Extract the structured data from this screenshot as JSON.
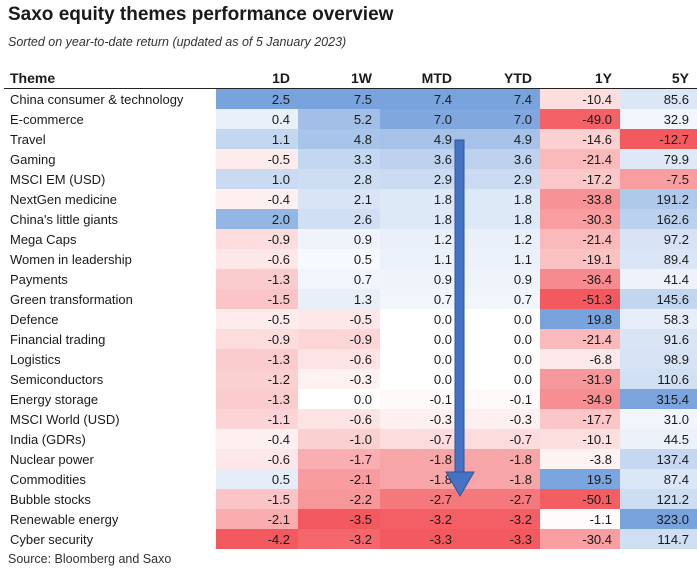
{
  "title": "Saxo equity themes performance overview",
  "subtitle": "Sorted on year-to-date return (updated as of 5 January 2023)",
  "source": "Source: Bloomberg and Saxo",
  "colors": {
    "positive": "#5b8fd6",
    "negative": "#f0363c",
    "neutral": "#ffffff",
    "arrow": "#4472c4"
  },
  "chart_data": {
    "type": "table",
    "columns": [
      "Theme",
      "1D",
      "1W",
      "MTD",
      "YTD",
      "1Y",
      "5Y"
    ],
    "rows": [
      [
        "China consumer & technology",
        2.5,
        7.5,
        7.4,
        7.4,
        -10.4,
        85.6
      ],
      [
        "E-commerce",
        0.4,
        5.2,
        7.0,
        7.0,
        -49.0,
        32.9
      ],
      [
        "Travel",
        1.1,
        4.8,
        4.9,
        4.9,
        -14.6,
        -12.7
      ],
      [
        "Gaming",
        -0.5,
        3.3,
        3.6,
        3.6,
        -21.4,
        79.9
      ],
      [
        "MSCI EM (USD)",
        1.0,
        2.8,
        2.9,
        2.9,
        -17.2,
        -7.5
      ],
      [
        "NextGen medicine",
        -0.4,
        2.1,
        1.8,
        1.8,
        -33.8,
        191.2
      ],
      [
        "China's little giants",
        2.0,
        2.6,
        1.8,
        1.8,
        -30.3,
        162.6
      ],
      [
        "Mega Caps",
        -0.9,
        0.9,
        1.2,
        1.2,
        -21.4,
        97.2
      ],
      [
        "Women in leadership",
        -0.6,
        0.5,
        1.1,
        1.1,
        -19.1,
        89.4
      ],
      [
        "Payments",
        -1.3,
        0.7,
        0.9,
        0.9,
        -36.4,
        41.4
      ],
      [
        "Green transformation",
        -1.5,
        1.3,
        0.7,
        0.7,
        -51.3,
        145.6
      ],
      [
        "Defence",
        -0.5,
        -0.5,
        0.0,
        0.0,
        19.8,
        58.3
      ],
      [
        "Financial trading",
        -0.9,
        -0.9,
        0.0,
        0.0,
        -21.4,
        91.6
      ],
      [
        "Logistics",
        -1.3,
        -0.6,
        0.0,
        0.0,
        -6.8,
        98.9
      ],
      [
        "Semiconductors",
        -1.2,
        -0.3,
        0.0,
        0.0,
        -31.9,
        110.6
      ],
      [
        "Energy storage",
        -1.3,
        0.0,
        -0.1,
        -0.1,
        -34.9,
        315.4
      ],
      [
        "MSCI World (USD)",
        -1.1,
        -0.6,
        -0.3,
        -0.3,
        -17.7,
        31.0
      ],
      [
        "India (GDRs)",
        -0.4,
        -1.0,
        -0.7,
        -0.7,
        -10.1,
        44.5
      ],
      [
        "Nuclear power",
        -0.6,
        -1.7,
        -1.8,
        -1.8,
        -3.8,
        137.4
      ],
      [
        "Commodities",
        0.5,
        -2.1,
        -1.8,
        -1.8,
        19.5,
        87.4
      ],
      [
        "Bubble stocks",
        -1.5,
        -2.2,
        -2.7,
        -2.7,
        -50.1,
        121.2
      ],
      [
        "Renewable energy",
        -2.1,
        -3.5,
        -3.2,
        -3.2,
        -1.1,
        323.0
      ],
      [
        "Cyber security",
        -4.2,
        -3.2,
        -3.3,
        -3.3,
        -30.4,
        114.7
      ]
    ],
    "sort_by": "YTD"
  }
}
